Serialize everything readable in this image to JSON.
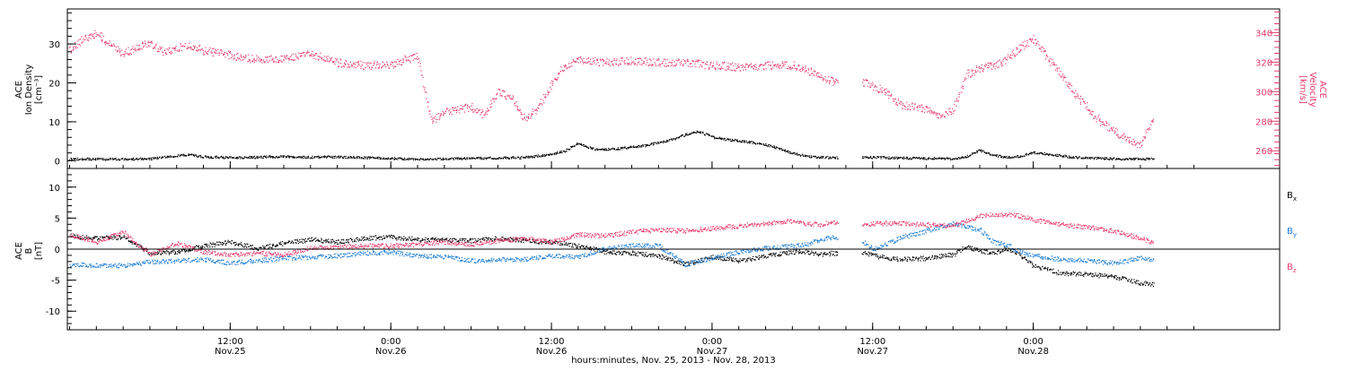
{
  "chart_data": [
    {
      "type": "scatter",
      "ylabel_lines": [
        "ACE",
        "Ion Density",
        "[cm⁻³]"
      ],
      "y2label_lines": [
        "ACE",
        "Velocity",
        "[km/s]"
      ],
      "yticks": [
        "0",
        "10",
        "20",
        "30"
      ],
      "y2ticks": [
        "260",
        "280",
        "300",
        "320",
        "340"
      ],
      "ylim": [
        -2,
        39
      ],
      "y2lim": [
        248,
        356
      ],
      "series": [
        {
          "color": "#000000",
          "points": [
            [
              0,
              0.6
            ],
            [
              2,
              0.5
            ],
            [
              4,
              0.5
            ],
            [
              6,
              0.6
            ],
            [
              8,
              1.4
            ],
            [
              9,
              1.6
            ],
            [
              10,
              1.1
            ],
            [
              12,
              0.9
            ],
            [
              14,
              1.0
            ],
            [
              16,
              1.2
            ],
            [
              18,
              1.0
            ],
            [
              20,
              1.1
            ],
            [
              22,
              0.9
            ],
            [
              24,
              0.7
            ],
            [
              26,
              0.5
            ],
            [
              28,
              0.6
            ],
            [
              30,
              0.7
            ],
            [
              32,
              0.8
            ],
            [
              34,
              0.9
            ],
            [
              36,
              1.8
            ],
            [
              37,
              2.6
            ],
            [
              38,
              4.6
            ],
            [
              39,
              3.2
            ],
            [
              40,
              3.0
            ],
            [
              41,
              3.2
            ],
            [
              42,
              3.6
            ],
            [
              43,
              4.0
            ],
            [
              44,
              4.8
            ],
            [
              45,
              5.6
            ],
            [
              46,
              6.8
            ],
            [
              47,
              7.6
            ],
            [
              48,
              6.2
            ],
            [
              49,
              5.6
            ],
            [
              50,
              5.2
            ],
            [
              51,
              4.8
            ],
            [
              52,
              4.2
            ],
            [
              53,
              3.2
            ],
            [
              54,
              2.0
            ],
            [
              55,
              1.3
            ],
            [
              56,
              1.0
            ],
            [
              57,
              0.9
            ],
            [
              60,
              1.0
            ],
            [
              62,
              0.8
            ],
            [
              64,
              0.7
            ],
            [
              66,
              0.6
            ],
            [
              67,
              1.2
            ],
            [
              68,
              2.8
            ],
            [
              69,
              1.5
            ],
            [
              70,
              1.0
            ],
            [
              71,
              1.2
            ],
            [
              72,
              2.2
            ],
            [
              73,
              1.8
            ],
            [
              74,
              1.4
            ],
            [
              75,
              1.0
            ],
            [
              76,
              0.8
            ],
            [
              78,
              0.6
            ],
            [
              80,
              0.5
            ],
            [
              81,
              0.6
            ]
          ]
        },
        {
          "color": "#e8386a",
          "points": [
            [
              0,
              328
            ],
            [
              1,
              336
            ],
            [
              2,
              340
            ],
            [
              3,
              332
            ],
            [
              4,
              326
            ],
            [
              5,
              330
            ],
            [
              6,
              333
            ],
            [
              7,
              327
            ],
            [
              8,
              330
            ],
            [
              9,
              332
            ],
            [
              10,
              328
            ],
            [
              12,
              325
            ],
            [
              14,
              322
            ],
            [
              16,
              322
            ],
            [
              18,
              326
            ],
            [
              20,
              320
            ],
            [
              22,
              318
            ],
            [
              24,
              318
            ],
            [
              25,
              322
            ],
            [
              26,
              324
            ],
            [
              27,
              280
            ],
            [
              28,
              286
            ],
            [
              29,
              288
            ],
            [
              30,
              290
            ],
            [
              31,
              284
            ],
            [
              32,
              300
            ],
            [
              33,
              296
            ],
            [
              34,
              282
            ],
            [
              35,
              290
            ],
            [
              36,
              305
            ],
            [
              37,
              318
            ],
            [
              38,
              322
            ],
            [
              40,
              320
            ],
            [
              42,
              321
            ],
            [
              44,
              320
            ],
            [
              46,
              320
            ],
            [
              48,
              318
            ],
            [
              50,
              317
            ],
            [
              52,
              318
            ],
            [
              54,
              318
            ],
            [
              55,
              315
            ],
            [
              56,
              311
            ],
            [
              57,
              307
            ],
            [
              59.5,
              306
            ],
            [
              60,
              304
            ],
            [
              61,
              300
            ],
            [
              62,
              292
            ],
            [
              63,
              290
            ],
            [
              64,
              288
            ],
            [
              65,
              284
            ],
            [
              66,
              288
            ],
            [
              67,
              312
            ],
            [
              68,
              316
            ],
            [
              69,
              318
            ],
            [
              70,
              322
            ],
            [
              71,
              330
            ],
            [
              72,
              336
            ],
            [
              73,
              324
            ],
            [
              74,
              312
            ],
            [
              75,
              300
            ],
            [
              76,
              290
            ],
            [
              77,
              280
            ],
            [
              78,
              274
            ],
            [
              79,
              268
            ],
            [
              80,
              264
            ],
            [
              81,
              282
            ]
          ]
        }
      ]
    },
    {
      "type": "line",
      "ylabel_lines": [
        "ACE",
        "B",
        "[nT]"
      ],
      "yticks": [
        "-10",
        "-5",
        "0",
        "5",
        "10"
      ],
      "ylim": [
        -13,
        13
      ],
      "x_ticks": [
        {
          "top": "12:00",
          "bottom": "Nov.25"
        },
        {
          "top": "0:00",
          "bottom": "Nov.26"
        },
        {
          "top": "12:00",
          "bottom": "Nov.26"
        },
        {
          "top": "0:00",
          "bottom": "Nov.27"
        },
        {
          "top": "12:00",
          "bottom": "Nov.27"
        },
        {
          "top": "0:00",
          "bottom": "Nov.28"
        }
      ],
      "xlabel": "hours:minutes, Nov. 25, 2013 - Nov. 28, 2013",
      "series": [
        {
          "name": "Bx",
          "label_main": "B",
          "label_sub": "x",
          "color": "#000000",
          "points": [
            [
              0,
              2.2
            ],
            [
              2,
              1.8
            ],
            [
              4,
              2.0
            ],
            [
              6,
              -0.6
            ],
            [
              8,
              -0.4
            ],
            [
              10,
              0.6
            ],
            [
              12,
              1.2
            ],
            [
              14,
              0.2
            ],
            [
              16,
              1.0
            ],
            [
              18,
              1.6
            ],
            [
              20,
              1.2
            ],
            [
              22,
              1.8
            ],
            [
              24,
              2.0
            ],
            [
              26,
              1.6
            ],
            [
              28,
              1.6
            ],
            [
              30,
              1.4
            ],
            [
              32,
              1.8
            ],
            [
              34,
              1.4
            ],
            [
              36,
              1.2
            ],
            [
              38,
              0.6
            ],
            [
              40,
              -0.4
            ],
            [
              42,
              -0.6
            ],
            [
              44,
              -1.0
            ],
            [
              46,
              -2.4
            ],
            [
              48,
              -1.2
            ],
            [
              50,
              -1.8
            ],
            [
              52,
              -1.0
            ],
            [
              54,
              -0.4
            ],
            [
              55,
              -0.3
            ],
            [
              56,
              -0.8
            ],
            [
              57,
              -0.6
            ],
            [
              59.5,
              -0.6
            ],
            [
              60,
              -1.0
            ],
            [
              62,
              -1.6
            ],
            [
              64,
              -1.4
            ],
            [
              66,
              -0.8
            ],
            [
              67,
              0.4
            ],
            [
              68,
              -0.2
            ],
            [
              69,
              -0.6
            ],
            [
              70,
              0.2
            ],
            [
              71,
              -0.8
            ],
            [
              72,
              -2.6
            ],
            [
              74,
              -3.8
            ],
            [
              76,
              -4.0
            ],
            [
              78,
              -4.4
            ],
            [
              80,
              -5.4
            ],
            [
              81,
              -5.6
            ]
          ]
        },
        {
          "name": "By",
          "label_main": "B",
          "label_sub": "y",
          "color": "#1f7fd6",
          "points": [
            [
              0,
              -2.4
            ],
            [
              2,
              -2.6
            ],
            [
              4,
              -2.6
            ],
            [
              6,
              -2.0
            ],
            [
              8,
              -1.8
            ],
            [
              10,
              -1.6
            ],
            [
              12,
              -2.2
            ],
            [
              14,
              -1.8
            ],
            [
              16,
              -1.4
            ],
            [
              18,
              -1.2
            ],
            [
              20,
              -1.0
            ],
            [
              22,
              -0.6
            ],
            [
              24,
              -0.4
            ],
            [
              26,
              -1.0
            ],
            [
              28,
              -1.2
            ],
            [
              30,
              -1.8
            ],
            [
              32,
              -1.6
            ],
            [
              34,
              -1.6
            ],
            [
              36,
              -1.0
            ],
            [
              38,
              -1.2
            ],
            [
              40,
              0.2
            ],
            [
              42,
              0.6
            ],
            [
              44,
              0.6
            ],
            [
              46,
              -2.4
            ],
            [
              48,
              -1.4
            ],
            [
              50,
              -0.4
            ],
            [
              52,
              0.2
            ],
            [
              54,
              0.6
            ],
            [
              55,
              0.8
            ],
            [
              56,
              1.6
            ],
            [
              57,
              2.0
            ],
            [
              59.5,
              1.0
            ],
            [
              60,
              0.0
            ],
            [
              62,
              1.8
            ],
            [
              64,
              3.0
            ],
            [
              66,
              4.2
            ],
            [
              67,
              3.6
            ],
            [
              68,
              3.2
            ],
            [
              69,
              1.2
            ],
            [
              70,
              0.8
            ],
            [
              71,
              -0.4
            ],
            [
              72,
              -1.0
            ],
            [
              74,
              -1.6
            ],
            [
              76,
              -1.8
            ],
            [
              78,
              -2.2
            ],
            [
              80,
              -1.4
            ],
            [
              81,
              -1.6
            ]
          ]
        },
        {
          "name": "Bz",
          "label_main": "B",
          "label_sub": "z",
          "color": "#e8386a",
          "points": [
            [
              0,
              2.4
            ],
            [
              2,
              1.2
            ],
            [
              4,
              2.8
            ],
            [
              6,
              -0.8
            ],
            [
              8,
              1.0
            ],
            [
              10,
              -0.4
            ],
            [
              12,
              -0.8
            ],
            [
              14,
              -0.6
            ],
            [
              16,
              -0.8
            ],
            [
              18,
              0.2
            ],
            [
              20,
              0.4
            ],
            [
              22,
              0.6
            ],
            [
              24,
              0.6
            ],
            [
              26,
              0.8
            ],
            [
              28,
              1.2
            ],
            [
              30,
              0.8
            ],
            [
              32,
              1.4
            ],
            [
              34,
              1.8
            ],
            [
              36,
              1.2
            ],
            [
              38,
              2.4
            ],
            [
              40,
              2.2
            ],
            [
              42,
              2.8
            ],
            [
              44,
              3.2
            ],
            [
              46,
              3.0
            ],
            [
              48,
              3.4
            ],
            [
              50,
              3.8
            ],
            [
              52,
              4.2
            ],
            [
              54,
              4.6
            ],
            [
              55,
              4.2
            ],
            [
              56,
              4.0
            ],
            [
              57,
              4.4
            ],
            [
              59.5,
              4.0
            ],
            [
              60,
              4.2
            ],
            [
              62,
              4.2
            ],
            [
              64,
              4.0
            ],
            [
              66,
              3.8
            ],
            [
              67,
              4.6
            ],
            [
              68,
              5.4
            ],
            [
              69,
              5.6
            ],
            [
              70,
              5.6
            ],
            [
              71,
              5.4
            ],
            [
              72,
              4.8
            ],
            [
              74,
              4.0
            ],
            [
              76,
              3.6
            ],
            [
              78,
              3.0
            ],
            [
              80,
              1.8
            ],
            [
              81,
              1.0
            ]
          ]
        }
      ]
    }
  ]
}
